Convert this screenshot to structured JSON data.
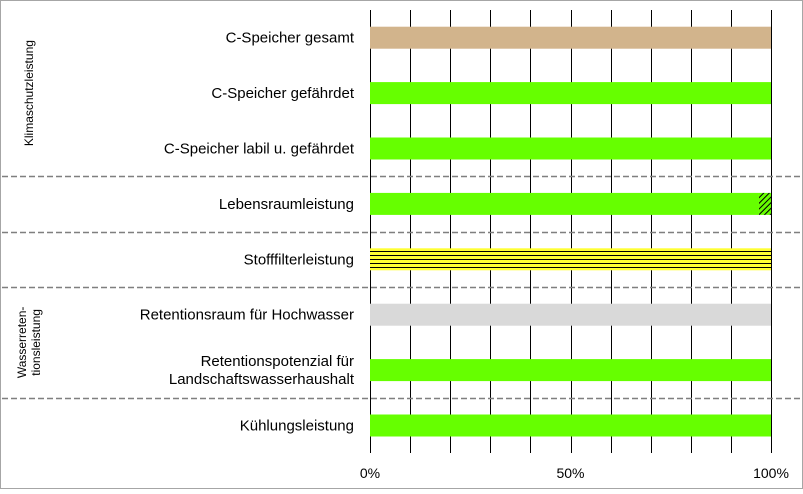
{
  "chart_data": {
    "type": "bar",
    "orientation": "horizontal",
    "stacked": true,
    "categories": [
      "C-Speicher gesamt",
      "C-Speicher gefährdet",
      "C-Speicher labil u. gefährdet",
      "Lebensraumleistung",
      "Stofffilterleistung",
      "Retentionsraum für Hochwasser",
      "Retentionspotenzial für Landschaftswasserhaushalt",
      "Kühlungsleistung"
    ],
    "category_lines": [
      [
        "C-Speicher gesamt"
      ],
      [
        "C-Speicher gefährdet"
      ],
      [
        "C-Speicher labil u. gefährdet"
      ],
      [
        "Lebensraumleistung"
      ],
      [
        "Stofffilterleistung"
      ],
      [
        "Retentionsraum für Hochwasser"
      ],
      [
        "Retentionspotenzial für",
        "Landschaftswasserhaushalt"
      ],
      [
        "Kühlungsleistung"
      ]
    ],
    "bars": [
      [
        {
          "value": 100,
          "style": "tan"
        }
      ],
      [
        {
          "value": 100,
          "style": "green"
        }
      ],
      [
        {
          "value": 100,
          "style": "green"
        }
      ],
      [
        {
          "value": 97,
          "style": "green"
        },
        {
          "value": 3,
          "style": "green-hatch"
        }
      ],
      [
        {
          "value": 100,
          "style": "yellow-stripes"
        }
      ],
      [
        {
          "value": 100,
          "style": "gray"
        }
      ],
      [
        {
          "value": 100,
          "style": "green"
        }
      ],
      [
        {
          "value": 100,
          "style": "green"
        }
      ]
    ],
    "x_ticks": [
      "0%",
      "50%",
      "100%"
    ],
    "x_tick_values": [
      0,
      50,
      100
    ],
    "xlim": [
      0,
      100
    ],
    "x_gridlines": [
      0,
      10,
      20,
      30,
      40,
      50,
      60,
      70,
      80,
      90,
      100
    ],
    "groups": [
      {
        "label_lines": [
          "Klimaschutzleistung"
        ],
        "first": 0,
        "last": 2
      },
      {
        "label_lines": [
          "Wasserreten-",
          "tionsleistung"
        ],
        "first": 5,
        "last": 6
      }
    ],
    "separators_after": [
      2,
      3,
      4,
      6
    ],
    "colors": {
      "green": "#66ff00",
      "tan": "#d2b48c",
      "gray": "#d9d9d9",
      "yellow": "#ffff33",
      "stripe": "#000000",
      "grid": "#000000",
      "separator": "#7f7f7f",
      "text": "#000000"
    }
  }
}
